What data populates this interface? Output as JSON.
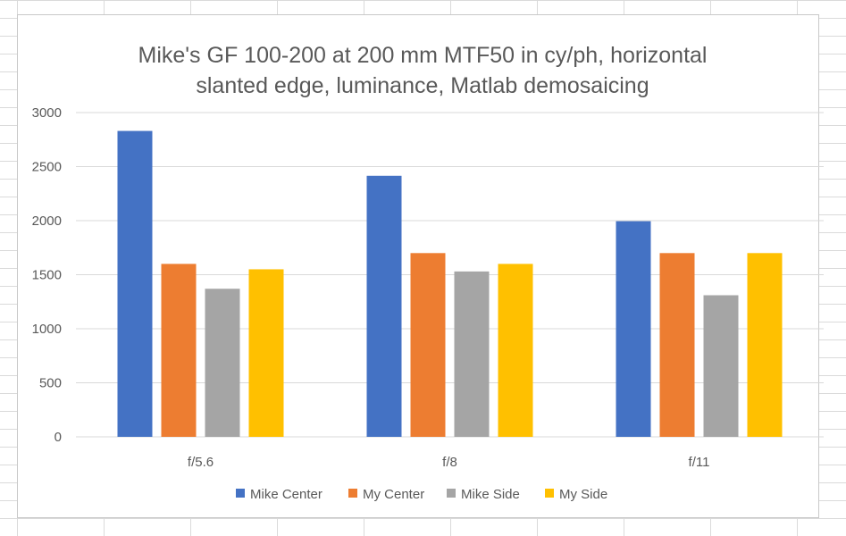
{
  "chart_data": {
    "type": "bar",
    "title_lines": [
      "Mike's GF 100-200 at 200 mm MTF50 in cy/ph, horizontal",
      "slanted edge, luminance, Matlab demosaicing"
    ],
    "categories": [
      "f/5.6",
      "f/8",
      "f/11"
    ],
    "series": [
      {
        "name": "Mike Center",
        "color": "#4472C4",
        "values": [
          2830,
          2415,
          1995
        ]
      },
      {
        "name": "My Center",
        "color": "#ED7D31",
        "values": [
          1600,
          1700,
          1700
        ]
      },
      {
        "name": "Mike Side",
        "color": "#A5A5A5",
        "values": [
          1370,
          1530,
          1310
        ]
      },
      {
        "name": "My Side",
        "color": "#FFC000",
        "values": [
          1550,
          1600,
          1700
        ]
      }
    ],
    "xlabel": "",
    "ylabel": "",
    "ylim": [
      0,
      3000
    ],
    "yticks": [
      0,
      500,
      1000,
      1500,
      2000,
      2500,
      3000
    ],
    "grid": true,
    "legend_position": "bottom"
  }
}
